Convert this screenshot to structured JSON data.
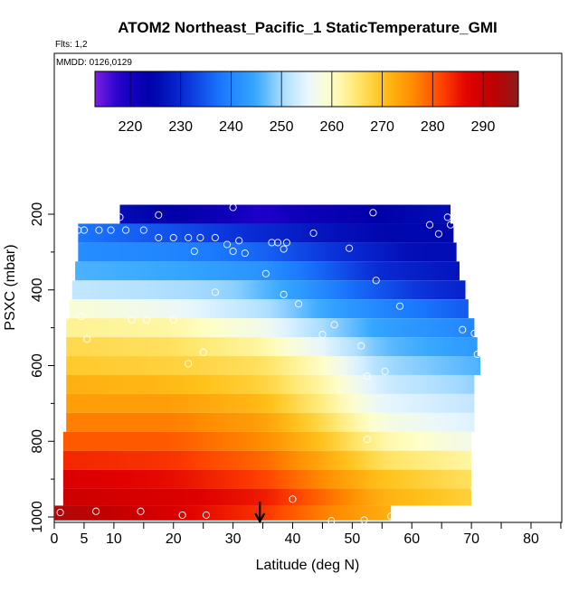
{
  "chart_data": {
    "type": "heatmap",
    "title": "ATOM2 Northeast_Pacific_1 StaticTemperature_GMI",
    "flights_label": "Flts: 1,2",
    "dates_label": "MMDD: 0126,0129",
    "xlabel": "Latitude (deg N)",
    "ylabel": "PSXC (mbar)",
    "xlim": [
      0,
      85
    ],
    "ylim": [
      1000,
      100
    ],
    "xticks": [
      0,
      5,
      10,
      20,
      30,
      40,
      50,
      60,
      70,
      80
    ],
    "yticks": [
      200,
      400,
      600,
      800,
      1000
    ],
    "colorbar": {
      "min": 213,
      "max": 297,
      "ticks": [
        220,
        230,
        240,
        250,
        260,
        270,
        280,
        290
      ]
    },
    "colorscale": [
      [
        213,
        "#7b1fe0"
      ],
      [
        218,
        "#1f00cc"
      ],
      [
        224,
        "#0000a8"
      ],
      [
        231,
        "#0a2fd8"
      ],
      [
        238,
        "#1a78ff"
      ],
      [
        245,
        "#35a7ff"
      ],
      [
        250,
        "#a8dcff"
      ],
      [
        255,
        "#e8f6ff"
      ],
      [
        260,
        "#ffffc8"
      ],
      [
        265,
        "#ffe870"
      ],
      [
        270,
        "#ffc21a"
      ],
      [
        276,
        "#ff8c00"
      ],
      [
        282,
        "#ff4000"
      ],
      [
        287,
        "#e00000"
      ],
      [
        292,
        "#c00000"
      ],
      [
        297,
        "#8c1c1c"
      ]
    ],
    "pressure_levels": [
      {
        "p": 200,
        "lat_start": 11,
        "lat_end": 66.5,
        "temps": [
          [
            11,
            226
          ],
          [
            30,
            221
          ],
          [
            35,
            218
          ],
          [
            40,
            221
          ],
          [
            50,
            223
          ],
          [
            60,
            225
          ],
          [
            66.5,
            226
          ]
        ]
      },
      {
        "p": 250,
        "lat_start": 4,
        "lat_end": 67,
        "temps": [
          [
            4,
            238
          ],
          [
            20,
            234
          ],
          [
            35,
            230
          ],
          [
            45,
            227
          ],
          [
            55,
            225
          ],
          [
            67,
            225
          ]
        ]
      },
      {
        "p": 300,
        "lat_start": 4,
        "lat_end": 67.5,
        "temps": [
          [
            4,
            241
          ],
          [
            20,
            240
          ],
          [
            35,
            236
          ],
          [
            50,
            230
          ],
          [
            60,
            226
          ],
          [
            67.5,
            226
          ]
        ]
      },
      {
        "p": 350,
        "lat_start": 3.5,
        "lat_end": 68,
        "temps": [
          [
            3.5,
            246
          ],
          [
            20,
            245
          ],
          [
            35,
            242
          ],
          [
            45,
            236
          ],
          [
            55,
            230
          ],
          [
            68,
            227
          ]
        ]
      },
      {
        "p": 400,
        "lat_start": 3,
        "lat_end": 69,
        "temps": [
          [
            3,
            252
          ],
          [
            15,
            251
          ],
          [
            30,
            249
          ],
          [
            40,
            244
          ],
          [
            50,
            237
          ],
          [
            60,
            232
          ],
          [
            69,
            229
          ]
        ]
      },
      {
        "p": 450,
        "lat_start": 2.5,
        "lat_end": 69.5,
        "temps": [
          [
            2.5,
            259
          ],
          [
            20,
            256
          ],
          [
            35,
            251
          ],
          [
            45,
            245
          ],
          [
            55,
            240
          ],
          [
            69.5,
            235
          ]
        ]
      },
      {
        "p": 500,
        "lat_start": 2,
        "lat_end": 70.5,
        "temps": [
          [
            2,
            263
          ],
          [
            20,
            262
          ],
          [
            35,
            257
          ],
          [
            45,
            250
          ],
          [
            55,
            244
          ],
          [
            70.5,
            240
          ]
        ]
      },
      {
        "p": 550,
        "lat_start": 2,
        "lat_end": 71,
        "temps": [
          [
            2,
            267
          ],
          [
            20,
            266
          ],
          [
            35,
            262
          ],
          [
            45,
            255
          ],
          [
            55,
            247
          ],
          [
            71,
            243
          ]
        ]
      },
      {
        "p": 600,
        "lat_start": 2,
        "lat_end": 71.5,
        "temps": [
          [
            2,
            269
          ],
          [
            20,
            268
          ],
          [
            35,
            266
          ],
          [
            45,
            260
          ],
          [
            55,
            250
          ],
          [
            71.5,
            246
          ]
        ]
      },
      {
        "p": 650,
        "lat_start": 2,
        "lat_end": 70.5,
        "temps": [
          [
            2,
            272
          ],
          [
            20,
            271
          ],
          [
            35,
            268
          ],
          [
            45,
            262
          ],
          [
            55,
            253
          ],
          [
            70.5,
            249
          ]
        ]
      },
      {
        "p": 700,
        "lat_start": 2,
        "lat_end": 70.5,
        "temps": [
          [
            2,
            274
          ],
          [
            20,
            274
          ],
          [
            35,
            271
          ],
          [
            45,
            264
          ],
          [
            55,
            255
          ],
          [
            70.5,
            252
          ]
        ]
      },
      {
        "p": 750,
        "lat_start": 2,
        "lat_end": 70.5,
        "temps": [
          [
            2,
            277
          ],
          [
            20,
            277
          ],
          [
            35,
            274
          ],
          [
            45,
            267
          ],
          [
            55,
            258
          ],
          [
            70.5,
            254
          ]
        ]
      },
      {
        "p": 800,
        "lat_start": 1.5,
        "lat_end": 70,
        "temps": [
          [
            1.5,
            280
          ],
          [
            20,
            280
          ],
          [
            35,
            276
          ],
          [
            45,
            270
          ],
          [
            55,
            262
          ],
          [
            70,
            257
          ]
        ]
      },
      {
        "p": 850,
        "lat_start": 1.5,
        "lat_end": 70,
        "temps": [
          [
            1.5,
            284
          ],
          [
            20,
            283
          ],
          [
            35,
            279
          ],
          [
            45,
            273
          ],
          [
            55,
            266
          ],
          [
            70,
            262
          ]
        ]
      },
      {
        "p": 900,
        "lat_start": 1.5,
        "lat_end": 70,
        "temps": [
          [
            1.5,
            288
          ],
          [
            20,
            286
          ],
          [
            35,
            282
          ],
          [
            45,
            276
          ],
          [
            55,
            270
          ],
          [
            70,
            266
          ]
        ]
      },
      {
        "p": 950,
        "lat_start": 1.5,
        "lat_end": 70,
        "temps": [
          [
            1.5,
            290
          ],
          [
            20,
            288
          ],
          [
            35,
            285
          ],
          [
            45,
            279
          ],
          [
            55,
            272
          ],
          [
            70,
            268
          ]
        ]
      },
      {
        "p": 990,
        "lat_start": 0,
        "lat_end": 56.5,
        "temps": [
          [
            0,
            294
          ],
          [
            15,
            290
          ],
          [
            25,
            286
          ],
          [
            35,
            283
          ],
          [
            45,
            277
          ],
          [
            56.5,
            272
          ]
        ]
      }
    ],
    "observations": [
      {
        "lat": 11,
        "p": 208
      },
      {
        "lat": 17.5,
        "p": 202
      },
      {
        "lat": 30,
        "p": 182
      },
      {
        "lat": 53.5,
        "p": 196
      },
      {
        "lat": 63,
        "p": 228
      },
      {
        "lat": 66,
        "p": 208
      },
      {
        "lat": 64.5,
        "p": 252
      },
      {
        "lat": 66.5,
        "p": 228
      },
      {
        "lat": 4,
        "p": 242
      },
      {
        "lat": 5,
        "p": 242
      },
      {
        "lat": 7.5,
        "p": 242
      },
      {
        "lat": 9.5,
        "p": 242
      },
      {
        "lat": 12,
        "p": 242
      },
      {
        "lat": 15,
        "p": 242
      },
      {
        "lat": 17.5,
        "p": 262
      },
      {
        "lat": 20,
        "p": 262
      },
      {
        "lat": 22.5,
        "p": 262
      },
      {
        "lat": 24.5,
        "p": 262
      },
      {
        "lat": 27,
        "p": 262
      },
      {
        "lat": 29,
        "p": 280
      },
      {
        "lat": 31,
        "p": 270
      },
      {
        "lat": 36.5,
        "p": 275
      },
      {
        "lat": 37.5,
        "p": 275
      },
      {
        "lat": 39,
        "p": 275
      },
      {
        "lat": 43.5,
        "p": 250
      },
      {
        "lat": 49.5,
        "p": 290
      },
      {
        "lat": 23.5,
        "p": 298
      },
      {
        "lat": 30,
        "p": 298
      },
      {
        "lat": 32,
        "p": 303
      },
      {
        "lat": 38.5,
        "p": 292
      },
      {
        "lat": 35.5,
        "p": 357
      },
      {
        "lat": 54,
        "p": 375
      },
      {
        "lat": 27,
        "p": 406
      },
      {
        "lat": 38.5,
        "p": 412
      },
      {
        "lat": 41,
        "p": 437
      },
      {
        "lat": 58,
        "p": 443
      },
      {
        "lat": 2,
        "p": 470
      },
      {
        "lat": 4.5,
        "p": 470
      },
      {
        "lat": 13,
        "p": 479
      },
      {
        "lat": 15.5,
        "p": 479
      },
      {
        "lat": 20,
        "p": 479
      },
      {
        "lat": 47,
        "p": 492
      },
      {
        "lat": 45,
        "p": 518
      },
      {
        "lat": 68.5,
        "p": 505
      },
      {
        "lat": 70.5,
        "p": 515
      },
      {
        "lat": 5.5,
        "p": 530
      },
      {
        "lat": 51.5,
        "p": 548
      },
      {
        "lat": 25,
        "p": 565
      },
      {
        "lat": 71,
        "p": 570
      },
      {
        "lat": 22.5,
        "p": 595
      },
      {
        "lat": 55.5,
        "p": 615
      },
      {
        "lat": 52.5,
        "p": 628
      },
      {
        "lat": 52.5,
        "p": 795
      },
      {
        "lat": 70.5,
        "p": 925
      },
      {
        "lat": 40,
        "p": 953
      },
      {
        "lat": 1,
        "p": 988
      },
      {
        "lat": 7,
        "p": 985
      },
      {
        "lat": 14.5,
        "p": 985
      },
      {
        "lat": 21.5,
        "p": 995
      },
      {
        "lat": 25.5,
        "p": 995
      },
      {
        "lat": 46.5,
        "p": 1010
      },
      {
        "lat": 52,
        "p": 1008
      },
      {
        "lat": 56.5,
        "p": 998
      }
    ],
    "marker": {
      "lat": 34.5,
      "p": 1000
    }
  }
}
